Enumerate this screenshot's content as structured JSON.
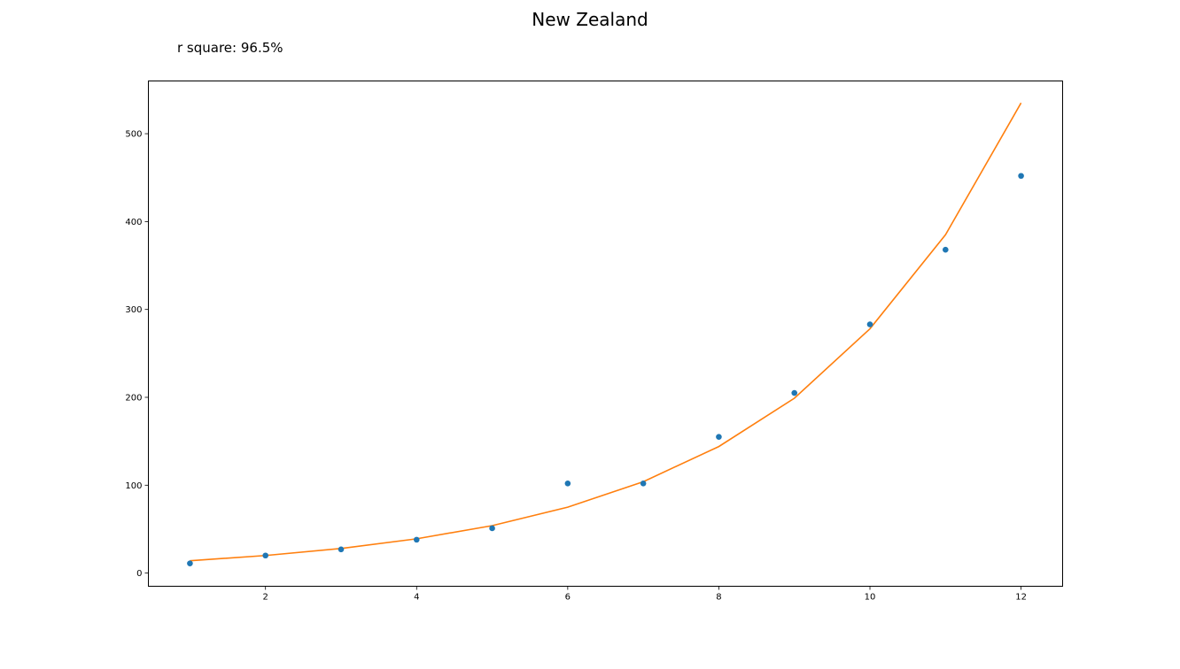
{
  "chart_data": {
    "type": "scatter",
    "title": "New Zealand",
    "annotation": "r square: 96.5%",
    "xlabel": "",
    "ylabel": "",
    "xlim": [
      0.45,
      12.55
    ],
    "ylim": [
      -15,
      560
    ],
    "x_ticks": [
      2,
      4,
      6,
      8,
      10,
      12
    ],
    "y_ticks": [
      0,
      100,
      200,
      300,
      400,
      500
    ],
    "grid": false,
    "legend": "none",
    "series": [
      {
        "kind": "scatter",
        "color": "#1f77b4",
        "x": [
          1,
          2,
          3,
          4,
          5,
          6,
          7,
          8,
          9,
          10,
          11,
          12
        ],
        "y": [
          11,
          20,
          27,
          38,
          51,
          102,
          102,
          155,
          205,
          283,
          368,
          452
        ]
      },
      {
        "kind": "line",
        "color": "#ff7f0e",
        "x": [
          1,
          2,
          3,
          4,
          5,
          6,
          7,
          8,
          9,
          10,
          11,
          12
        ],
        "y": [
          14,
          20,
          28,
          39,
          54,
          75,
          104,
          144,
          199,
          278,
          385,
          535
        ]
      }
    ]
  }
}
